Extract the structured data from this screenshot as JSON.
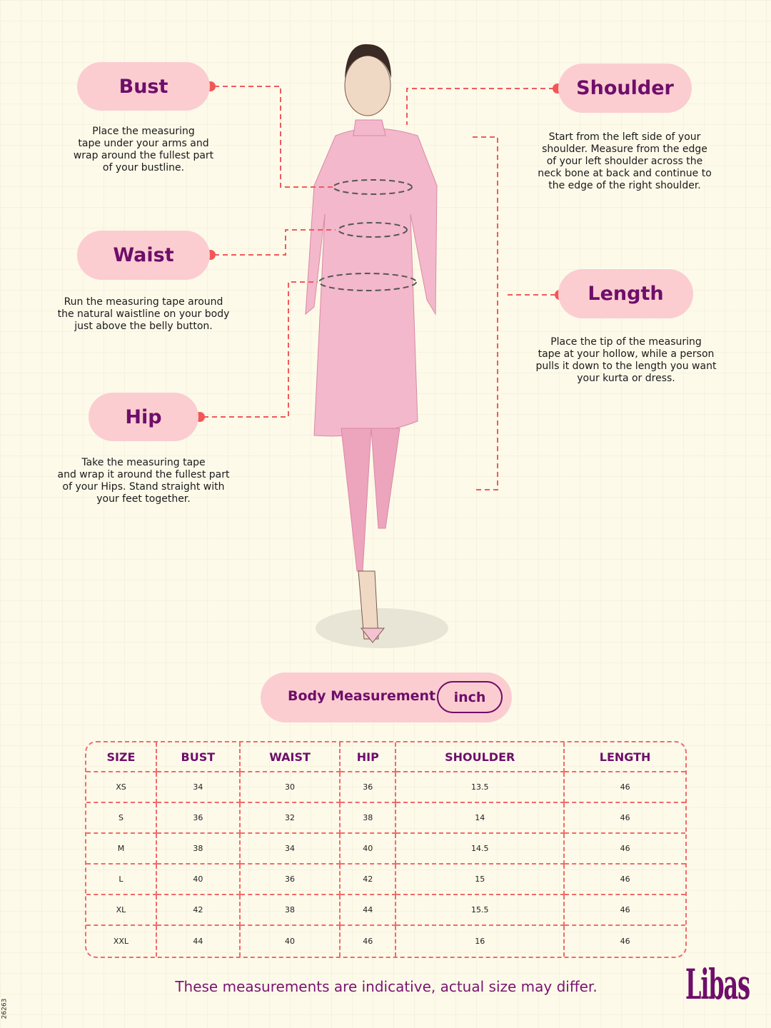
{
  "callouts": {
    "bust": {
      "label": "Bust",
      "text": [
        "Place the measuring",
        "tape under your arms and",
        "wrap around the fullest part",
        "of your bustline."
      ]
    },
    "waist": {
      "label": "Waist",
      "text": [
        "Run the measuring tape around",
        "the natural waistline on your body",
        "just above the belly button."
      ]
    },
    "hip": {
      "label": "Hip",
      "text": [
        "Take the measuring tape",
        "and wrap it around the fullest part",
        "of your Hips. Stand straight with",
        "your feet together."
      ]
    },
    "shoulder": {
      "label": "Shoulder",
      "text": [
        "Start from the left side of your",
        "shoulder. Measure from the edge",
        "of your left shoulder across the",
        "neck bone at back and continue to",
        "the edge of the right shoulder."
      ]
    },
    "length": {
      "label": "Length",
      "text": [
        "Place the tip of the measuring",
        "tape at your hollow, while a person",
        "pulls it down to the length you want",
        "your kurta or dress."
      ]
    }
  },
  "measurement_header": {
    "label": "Body Measurement",
    "unit": "inch"
  },
  "table": {
    "columns": [
      "SIZE",
      "BUST",
      "WAIST",
      "HIP",
      "SHOULDER",
      "LENGTH"
    ],
    "rows": [
      [
        "XS",
        "34",
        "30",
        "36",
        "13.5",
        "46"
      ],
      [
        "S",
        "36",
        "32",
        "38",
        "14",
        "46"
      ],
      [
        "M",
        "38",
        "34",
        "40",
        "14.5",
        "46"
      ],
      [
        "L",
        "40",
        "36",
        "42",
        "15",
        "46"
      ],
      [
        "XL",
        "42",
        "38",
        "44",
        "15.5",
        "46"
      ],
      [
        "XXL",
        "44",
        "40",
        "46",
        "16",
        "46"
      ]
    ]
  },
  "footer": {
    "disclaimer": "These measurements are indicative, actual size may differ.",
    "brand": "Libas",
    "code": "26263"
  },
  "colors": {
    "background": "#fdfaea",
    "pill": "#fbcdd0",
    "accent_text": "#6e0e6a",
    "dashed_line": "#f05a5a"
  }
}
